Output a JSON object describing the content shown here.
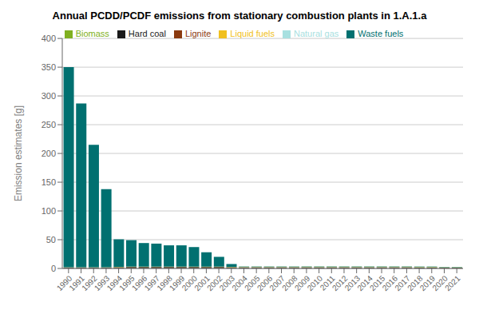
{
  "chart_data": {
    "type": "bar",
    "stacked": true,
    "title": "Annual PCDD/PCDF emissions from stationary combustion plants in 1.A.1.a",
    "y_label": "Emission estimates [g]",
    "categories": [
      1990,
      1991,
      1992,
      1993,
      1994,
      1995,
      1996,
      1997,
      1998,
      1999,
      2000,
      2001,
      2002,
      2003,
      2004,
      2005,
      2006,
      2007,
      2008,
      2009,
      2010,
      2011,
      2012,
      2013,
      2014,
      2015,
      2016,
      2017,
      2018,
      2019,
      2020,
      2021
    ],
    "series": [
      {
        "name": "Lignite",
        "color": "#8B3A0F",
        "values": [
          0.5,
          0.5,
          0.5,
          0.5,
          0.5,
          0.5,
          0.5,
          0.5,
          0.5,
          0.5,
          0.5,
          0.5,
          0.5,
          0.5,
          0.5,
          0.5,
          0.5,
          0.5,
          0.5,
          0.5,
          0.5,
          0.5,
          0.5,
          0.5,
          0.5,
          0.5,
          0.5,
          0.5,
          0.3,
          0.3,
          0.2,
          0.2
        ]
      },
      {
        "name": "Hard coal",
        "color": "#1a1a1a",
        "values": [
          1.0,
          1.0,
          1.0,
          1.0,
          1.5,
          2.0,
          2.0,
          2.0,
          2.0,
          2.0,
          2.0,
          2.0,
          2.0,
          1.5,
          1.5,
          1.5,
          1.5,
          1.5,
          1.5,
          1.5,
          1.5,
          1.5,
          1.5,
          1.5,
          1.5,
          1.5,
          1.5,
          1.5,
          1.5,
          1.5,
          1.0,
          1.0
        ]
      },
      {
        "name": "Liquid fuels",
        "color": "#f0c020",
        "values": [
          0.3,
          0.3,
          0.3,
          0.3,
          0.5,
          0.5,
          0.5,
          0.5,
          0.5,
          0.5,
          0.5,
          0.5,
          0.5,
          0.5,
          0.3,
          0.3,
          0.3,
          0.3,
          0.3,
          0.3,
          0.3,
          0.3,
          0.3,
          0.3,
          0.3,
          0.3,
          0.3,
          0.3,
          0.3,
          0.3,
          0.2,
          0.2
        ]
      },
      {
        "name": "Natural gas",
        "color": "#a8e0e0",
        "values": [
          0.1,
          0.1,
          0.1,
          0.1,
          0.1,
          0.1,
          0.1,
          0.1,
          0.1,
          0.1,
          0.1,
          0.1,
          0.1,
          0.1,
          0.3,
          0.3,
          0.3,
          0.3,
          0.3,
          0.3,
          0.3,
          0.3,
          0.3,
          0.3,
          0.3,
          0.3,
          0.3,
          0.3,
          0.3,
          0.3,
          0.2,
          0.2
        ]
      },
      {
        "name": "Biomass",
        "color": "#80b020",
        "values": [
          0.1,
          0.1,
          0.1,
          0.1,
          0.1,
          0.1,
          0.1,
          0.1,
          0.1,
          0.1,
          0.1,
          0.1,
          0.1,
          0.1,
          0.4,
          0.4,
          0.4,
          0.4,
          0.4,
          0.5,
          0.5,
          0.5,
          0.5,
          0.5,
          0.5,
          0.5,
          0.5,
          0.5,
          0.5,
          0.5,
          0.5,
          0.5
        ]
      },
      {
        "name": "Waste fuels",
        "color": "#007070",
        "values": [
          348,
          285,
          213,
          136,
          48,
          46,
          41,
          40,
          37,
          37,
          34,
          25,
          17,
          5,
          0.5,
          0.5,
          0.5,
          0.5,
          0.5,
          0.5,
          0.5,
          0.5,
          0.5,
          0.5,
          0.5,
          0.5,
          0.5,
          0.5,
          0.5,
          0.5,
          0.5,
          0.5
        ]
      }
    ],
    "ylim": [
      0,
      400
    ],
    "yticks": [
      0,
      50,
      100,
      150,
      200,
      250,
      300,
      350,
      400
    ],
    "grid": true,
    "legend": "top"
  }
}
